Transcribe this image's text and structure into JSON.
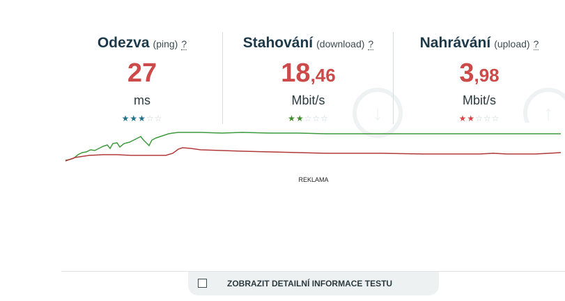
{
  "metrics": [
    {
      "title": "Odezva",
      "subtitle": "(ping)",
      "help": "?",
      "value_int": "27",
      "value_dec": "",
      "unit": "ms",
      "stars_filled": 3,
      "stars_total": 5,
      "star_color": "#1f6f8b"
    },
    {
      "title": "Stahování",
      "subtitle": "(download)",
      "help": "?",
      "value_int": "18",
      "value_dec": ",46",
      "unit": "Mbit/s",
      "stars_filled": 2,
      "stars_total": 5,
      "star_color": "#3d8b2a",
      "icon": "arrow-down-icon"
    },
    {
      "title": "Nahrávání",
      "subtitle": "(upload)",
      "help": "?",
      "value_int": "3",
      "value_dec": ",98",
      "unit": "Mbit/s",
      "stars_filled": 2,
      "stars_total": 5,
      "star_color": "#d94545",
      "icon": "arrow-up-icon"
    }
  ],
  "graph": {
    "download_color": "#3d9a3d",
    "upload_color": "#b03a3a"
  },
  "ad_label": "REKLAMA",
  "detail_toggle": {
    "label": "ZOBRAZIT DETAILNÍ INFORMACE TESTU",
    "checked": false
  },
  "colors": {
    "value_red": "#cc4a4a",
    "title_dark": "#1d3a4b"
  }
}
